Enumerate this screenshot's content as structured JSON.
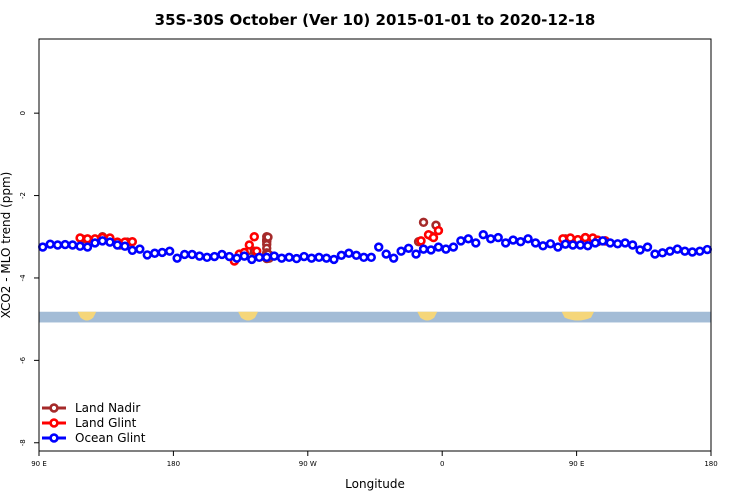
{
  "chart_data": {
    "type": "scatter",
    "title": "35S-30S October (Ver 10)   2015-01-01 to 2020-12-18",
    "xlabel": "Longitude",
    "ylabel": "XCO2 - MLO trend (ppm)",
    "xlim": [
      -90,
      180
    ],
    "ylim": [
      -8.2,
      1.8
    ],
    "x_ticks": [
      {
        "value": -90,
        "label": "90 E"
      },
      {
        "value": -36,
        "label": "180"
      },
      {
        "value": 18,
        "label": "90 W"
      },
      {
        "value": 72,
        "label": "0"
      },
      {
        "value": 126,
        "label": "90 E"
      },
      {
        "value": 180,
        "label": "180"
      }
    ],
    "y_ticks": [
      0,
      -2,
      -4,
      -6,
      -8
    ],
    "grid": false,
    "legend_position": "bottom-left",
    "land_band": {
      "ymin": -5.08,
      "ymax": -4.82
    },
    "land_segments": [
      [
        -74.5,
        -67
      ],
      [
        -10,
        -2
      ],
      [
        62,
        70
      ],
      [
        120,
        133
      ]
    ],
    "series": [
      {
        "name": "Land Nadir",
        "color": "#a52a2a",
        "points": [
          [
            -72.5,
            -3.06
          ],
          [
            -70.5,
            -3.06
          ],
          [
            -64.5,
            -3.0
          ],
          [
            -61.5,
            -3.08
          ],
          [
            -57.5,
            -3.2
          ],
          [
            -54.5,
            -3.13
          ],
          [
            -7.5,
            -3.42
          ],
          [
            -5.5,
            -3.33
          ],
          [
            -3.5,
            -3.35
          ],
          [
            1.5,
            -3.0
          ],
          [
            1.5,
            -3.07
          ],
          [
            1.5,
            -3.1
          ],
          [
            1.5,
            -3.12
          ],
          [
            1.5,
            -3.19
          ],
          [
            1.5,
            -3.28
          ],
          [
            1.5,
            -3.41
          ],
          [
            1.5,
            -3.53
          ],
          [
            2.5,
            -3.44
          ],
          [
            2.5,
            -3.48
          ],
          [
            2.5,
            -3.52
          ],
          [
            1.5,
            -3.39
          ],
          [
            2.0,
            -3.01
          ],
          [
            2.0,
            -3.42
          ],
          [
            62.5,
            -3.12
          ],
          [
            64.5,
            -2.65
          ],
          [
            67.5,
            -2.98
          ],
          [
            69.5,
            -2.72
          ],
          [
            121.5,
            -3.05
          ],
          [
            123.5,
            -3.06
          ],
          [
            126.5,
            -3.07
          ],
          [
            129.5,
            -3.02
          ],
          [
            132.5,
            -3.05
          ],
          [
            134.5,
            -3.12
          ],
          [
            137.5,
            -3.1
          ]
        ]
      },
      {
        "name": "Land Glint",
        "color": "#ff0000",
        "points": [
          [
            -73.5,
            -3.03
          ],
          [
            -70.5,
            -3.05
          ],
          [
            -67.5,
            -3.05
          ],
          [
            -64.5,
            -3.02
          ],
          [
            -61.5,
            -3.03
          ],
          [
            -58.5,
            -3.13
          ],
          [
            -55.5,
            -3.13
          ],
          [
            -52.5,
            -3.12
          ],
          [
            -11.5,
            -3.59
          ],
          [
            -9.5,
            -3.42
          ],
          [
            -7.5,
            -3.38
          ],
          [
            -5.5,
            -3.2
          ],
          [
            -3.5,
            -3.0
          ],
          [
            -2.5,
            -3.35
          ],
          [
            63.5,
            -3.1
          ],
          [
            66.5,
            -2.95
          ],
          [
            68.5,
            -3.02
          ],
          [
            70.5,
            -2.85
          ],
          [
            120.5,
            -3.05
          ],
          [
            123.5,
            -3.03
          ],
          [
            126.5,
            -3.07
          ],
          [
            129.5,
            -3.02
          ],
          [
            132.5,
            -3.03
          ],
          [
            134.5,
            -3.08
          ],
          [
            137.5,
            -3.1
          ]
        ]
      },
      {
        "name": "Ocean Glint",
        "color": "#0000ff",
        "points": [
          [
            -88.5,
            -3.25
          ],
          [
            -85.5,
            -3.18
          ],
          [
            -82.5,
            -3.2
          ],
          [
            -79.5,
            -3.19
          ],
          [
            -76.5,
            -3.2
          ],
          [
            -73.5,
            -3.23
          ],
          [
            -70.5,
            -3.25
          ],
          [
            -67.5,
            -3.15
          ],
          [
            -64.5,
            -3.1
          ],
          [
            -61.5,
            -3.13
          ],
          [
            -58.5,
            -3.2
          ],
          [
            -55.5,
            -3.23
          ],
          [
            -52.5,
            -3.33
          ],
          [
            -49.5,
            -3.3
          ],
          [
            -46.5,
            -3.44
          ],
          [
            -43.5,
            -3.4
          ],
          [
            -40.5,
            -3.38
          ],
          [
            -37.5,
            -3.35
          ],
          [
            -34.5,
            -3.52
          ],
          [
            -31.5,
            -3.43
          ],
          [
            -28.5,
            -3.43
          ],
          [
            -25.5,
            -3.47
          ],
          [
            -22.5,
            -3.5
          ],
          [
            -19.5,
            -3.48
          ],
          [
            -16.5,
            -3.43
          ],
          [
            -13.5,
            -3.48
          ],
          [
            -10.5,
            -3.52
          ],
          [
            -7.5,
            -3.47
          ],
          [
            -4.5,
            -3.55
          ],
          [
            -1.5,
            -3.5
          ],
          [
            1.5,
            -3.5
          ],
          [
            4.5,
            -3.47
          ],
          [
            7.5,
            -3.52
          ],
          [
            10.5,
            -3.5
          ],
          [
            13.5,
            -3.53
          ],
          [
            16.5,
            -3.48
          ],
          [
            19.5,
            -3.52
          ],
          [
            22.5,
            -3.5
          ],
          [
            25.5,
            -3.52
          ],
          [
            28.5,
            -3.55
          ],
          [
            31.5,
            -3.45
          ],
          [
            34.5,
            -3.4
          ],
          [
            37.5,
            -3.45
          ],
          [
            40.5,
            -3.5
          ],
          [
            43.5,
            -3.5
          ],
          [
            46.5,
            -3.25
          ],
          [
            49.5,
            -3.42
          ],
          [
            52.5,
            -3.52
          ],
          [
            55.5,
            -3.35
          ],
          [
            58.5,
            -3.28
          ],
          [
            61.5,
            -3.42
          ],
          [
            64.5,
            -3.3
          ],
          [
            67.5,
            -3.32
          ],
          [
            70.5,
            -3.25
          ],
          [
            73.5,
            -3.3
          ],
          [
            76.5,
            -3.25
          ],
          [
            79.5,
            -3.1
          ],
          [
            82.5,
            -3.05
          ],
          [
            85.5,
            -3.15
          ],
          [
            88.5,
            -2.95
          ],
          [
            91.5,
            -3.05
          ],
          [
            94.5,
            -3.02
          ],
          [
            97.5,
            -3.15
          ],
          [
            100.5,
            -3.08
          ],
          [
            103.5,
            -3.12
          ],
          [
            106.5,
            -3.05
          ],
          [
            109.5,
            -3.15
          ],
          [
            112.5,
            -3.22
          ],
          [
            115.5,
            -3.17
          ],
          [
            118.5,
            -3.25
          ],
          [
            121.5,
            -3.18
          ],
          [
            124.5,
            -3.2
          ],
          [
            127.5,
            -3.2
          ],
          [
            130.5,
            -3.22
          ],
          [
            133.5,
            -3.15
          ],
          [
            136.5,
            -3.1
          ],
          [
            139.5,
            -3.15
          ],
          [
            142.5,
            -3.17
          ],
          [
            145.5,
            -3.15
          ],
          [
            148.5,
            -3.2
          ],
          [
            151.5,
            -3.32
          ],
          [
            154.5,
            -3.25
          ],
          [
            157.5,
            -3.42
          ],
          [
            160.5,
            -3.39
          ],
          [
            163.5,
            -3.35
          ],
          [
            166.5,
            -3.3
          ],
          [
            169.5,
            -3.35
          ],
          [
            172.5,
            -3.37
          ],
          [
            175.5,
            -3.35
          ],
          [
            178.5,
            -3.31
          ]
        ]
      }
    ]
  }
}
